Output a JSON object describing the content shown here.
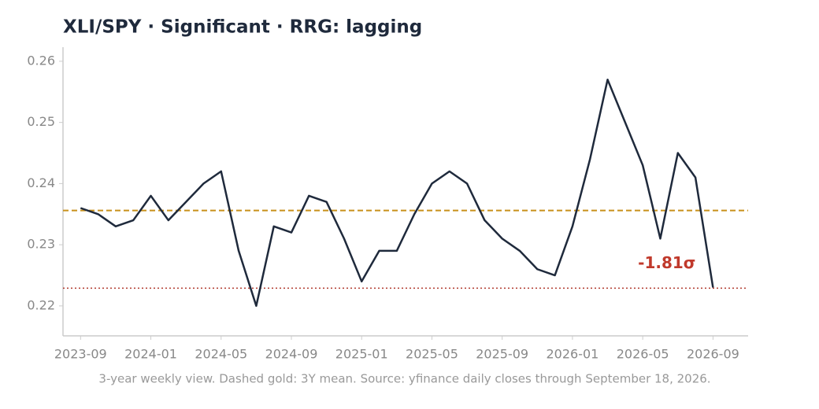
{
  "chart_data": {
    "type": "line",
    "title": "XLI/SPY  ·  Significant  ·  RRG: lagging",
    "footnote": "3-year weekly view. Dashed gold: 3Y mean. Source: yfinance daily closes through September 18, 2026.",
    "x": [
      "2023-09",
      "2023-10",
      "2023-11",
      "2023-12",
      "2024-01",
      "2024-02",
      "2024-03",
      "2024-04",
      "2024-05",
      "2024-06",
      "2024-07",
      "2024-08",
      "2024-09",
      "2024-10",
      "2024-11",
      "2024-12",
      "2025-01",
      "2025-02",
      "2025-03",
      "2025-04",
      "2025-05",
      "2025-06",
      "2025-07",
      "2025-08",
      "2025-09",
      "2025-10",
      "2025-11",
      "2025-12",
      "2026-01",
      "2026-02",
      "2026-03",
      "2026-04",
      "2026-05",
      "2026-06",
      "2026-07",
      "2026-08",
      "2026-09"
    ],
    "values": [
      0.236,
      0.235,
      0.233,
      0.234,
      0.238,
      0.234,
      0.237,
      0.24,
      0.242,
      0.229,
      0.22,
      0.233,
      0.232,
      0.238,
      0.237,
      0.231,
      0.224,
      0.229,
      0.229,
      0.235,
      0.24,
      0.242,
      0.24,
      0.234,
      0.231,
      0.229,
      0.226,
      0.225,
      0.233,
      0.244,
      0.257,
      0.25,
      0.243,
      0.231,
      0.245,
      0.241,
      0.223
    ],
    "color": "#1f2a3c",
    "xlim": [
      "2023-08",
      "2026-11"
    ],
    "xticks": [
      "2023-09",
      "2024-01",
      "2024-05",
      "2024-09",
      "2025-01",
      "2025-05",
      "2025-09",
      "2026-01",
      "2026-05",
      "2026-09"
    ],
    "ylim": [
      0.2151,
      0.2623
    ],
    "yticks": [
      0.22,
      0.23,
      0.24,
      0.25,
      0.26
    ],
    "reference_lines": [
      {
        "value": 0.2356,
        "color": "#c8901a",
        "style": "dashed"
      },
      {
        "value": 0.2229,
        "color": "#b03a2e",
        "style": "dotted"
      }
    ],
    "annotation": {
      "text": "-1.81σ",
      "color": "#c0392b"
    }
  }
}
